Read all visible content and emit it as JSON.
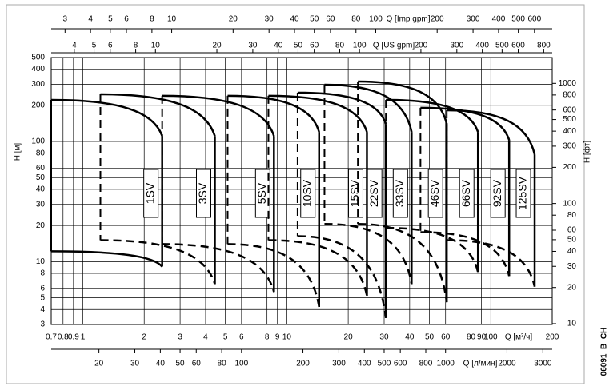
{
  "chart_data": {
    "type": "pump-curves",
    "log_scale": true,
    "grid": true,
    "color": "#000000",
    "code": "06091_B_CH",
    "x_axis": {
      "label": "Q [м³/ч]",
      "lim": [
        0.7,
        200
      ],
      "ticks": [
        0.7,
        0.8,
        0.9,
        1,
        2,
        3,
        4,
        5,
        6,
        8,
        9,
        10,
        20,
        30,
        40,
        50,
        60,
        80,
        90,
        100,
        200
      ]
    },
    "x2_axis": {
      "label": "Q [л/мин]",
      "lim": [
        11.67,
        3333.3
      ],
      "ticks": [
        20,
        30,
        40,
        50,
        60,
        80,
        100,
        200,
        300,
        400,
        500,
        600,
        800,
        1000,
        2000,
        3000
      ]
    },
    "top_axis": {
      "label": "Q [Imp gpm]",
      "lim": [
        2.566,
        733.2
      ],
      "ticks": [
        3,
        4,
        5,
        6,
        8,
        10,
        20,
        30,
        40,
        50,
        60,
        80,
        100,
        200,
        300,
        400,
        500,
        600
      ]
    },
    "top2_axis": {
      "label": "Q [US gpm]",
      "lim": [
        3.082,
        880.6
      ],
      "ticks": [
        4,
        5,
        6,
        8,
        10,
        20,
        30,
        40,
        50,
        60,
        80,
        100,
        200,
        300,
        400,
        500,
        600,
        800
      ]
    },
    "y_axis": {
      "label": "H [м]",
      "lim": [
        3,
        500
      ],
      "ticks": [
        3,
        4,
        5,
        6,
        8,
        10,
        20,
        30,
        40,
        50,
        60,
        80,
        100,
        200,
        300,
        400,
        500
      ]
    },
    "y2_axis": {
      "label": "H [фт]",
      "lim": [
        9.843,
        1640.4
      ],
      "ticks": [
        10,
        20,
        30,
        40,
        50,
        60,
        80,
        100,
        200,
        300,
        400,
        500,
        600,
        800,
        1000
      ]
    },
    "series": [
      {
        "name": "1SV",
        "left_edge": "solid",
        "q": [
          0.7,
          2.45
        ],
        "upper": [
          222,
          111
        ],
        "lower": [
          12.2,
          9.1
        ]
      },
      {
        "name": "3SV",
        "left_edge": "dashed",
        "q": [
          1.22,
          4.44
        ],
        "upper": [
          247,
          111
        ],
        "lower": [
          15.1,
          6.5
        ]
      },
      {
        "name": "5SV",
        "left_edge": "dashed",
        "q": [
          2.45,
          8.65
        ],
        "upper": [
          240,
          111
        ],
        "lower": [
          14.0,
          5.6
        ]
      },
      {
        "name": "10SV",
        "left_edge": "dashed",
        "q": [
          5.13,
          14.4
        ],
        "upper": [
          240,
          120
        ],
        "lower": [
          14.0,
          4.2
        ]
      },
      {
        "name": "15SV",
        "left_edge": "dashed",
        "q": [
          8.13,
          24.7
        ],
        "upper": [
          240,
          120
        ],
        "lower": [
          15.1,
          5.2
        ]
      },
      {
        "name": "22SV",
        "left_edge": "dashed",
        "q": [
          11.3,
          30.6
        ],
        "upper": [
          255,
          140
        ],
        "lower": [
          16.3,
          3.4
        ]
      },
      {
        "name": "33SV",
        "left_edge": "dashed",
        "q": [
          15.3,
          40.9
        ],
        "upper": [
          297,
          120
        ],
        "lower": [
          20.6,
          6.5
        ]
      },
      {
        "name": "46SV",
        "left_edge": "dashed",
        "q": [
          22.3,
          60.8
        ],
        "upper": [
          316,
          140
        ],
        "lower": [
          20.6,
          4.6
        ]
      },
      {
        "name": "66SV",
        "left_edge": "dashed",
        "q": [
          30.6,
          86.5
        ],
        "upper": [
          222,
          120
        ],
        "lower": [
          19.1,
          8.2
        ]
      },
      {
        "name": "92SV",
        "left_edge": "dashed",
        "q": [
          45.2,
          123
        ],
        "upper": [
          191,
          103
        ],
        "lower": [
          17.6,
          7.6
        ]
      },
      {
        "name": "125SV",
        "left_edge": "dashed",
        "q": [
          60.8,
          164
        ],
        "upper": [
          182,
          78
        ],
        "lower": [
          15.1,
          6.2
        ]
      }
    ]
  }
}
